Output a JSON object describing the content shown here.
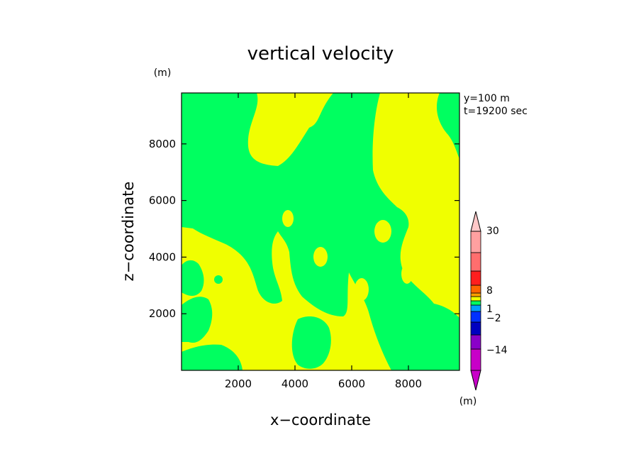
{
  "chart_data": {
    "type": "heatmap",
    "title": "vertical velocity",
    "xlabel": "x−coordinate",
    "ylabel": "z−coordinate",
    "x_unit": "(m)",
    "y_unit": "(m)",
    "xlim": [
      0,
      9800
    ],
    "ylim": [
      0,
      9800
    ],
    "x_ticks": [
      2000,
      4000,
      6000,
      8000
    ],
    "y_ticks": [
      2000,
      4000,
      6000,
      8000
    ],
    "info": [
      "y=100  m",
      "t=19200 sec"
    ],
    "colorbar": {
      "unit": "(m)",
      "labels": [
        "30",
        "8",
        "1",
        "−2",
        "−14"
      ],
      "colors": [
        "#c800c8",
        "#8a00c8",
        "#0000c0",
        "#0030ff",
        "#00a0ff",
        "#00ff60",
        "#f0ff00",
        "#ffa000",
        "#ff6400",
        "#ff1e1e",
        "#ff6e6e",
        "#ffa0a0",
        "#ffc8c8"
      ]
    },
    "field_colors": {
      "positive": "#f0ff00",
      "negative": "#00ff60"
    }
  }
}
